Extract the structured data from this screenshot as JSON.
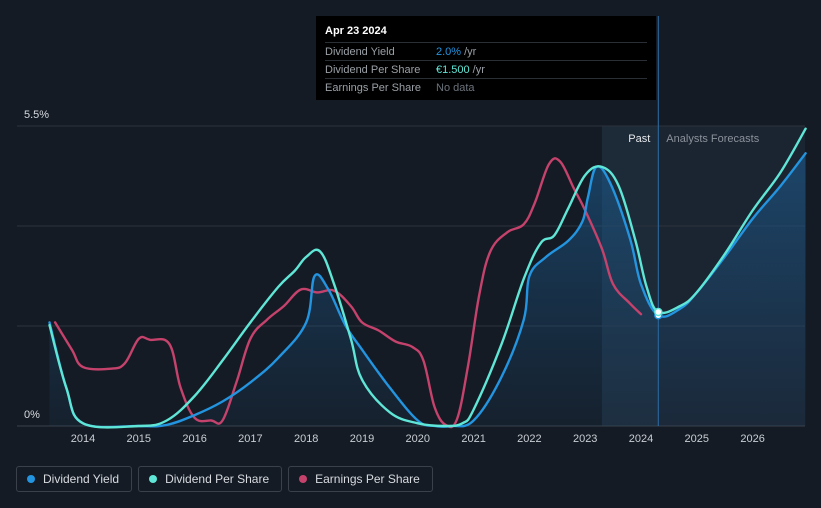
{
  "chart_data": {
    "type": "line",
    "title": "",
    "xlabel": "",
    "ylabel": "",
    "ylim": [
      0,
      5.5
    ],
    "y_ticks": [
      "0%",
      "5.5%"
    ],
    "x_ticks": [
      "2014",
      "2015",
      "2016",
      "2017",
      "2018",
      "2019",
      "2020",
      "2021",
      "2022",
      "2023",
      "2024",
      "2025",
      "2026"
    ],
    "past_label": "Past",
    "forecast_label": "Analysts Forecasts",
    "current_date": 2024.31,
    "series": [
      {
        "name": "Dividend Yield",
        "color": "#2394df",
        "area": true,
        "points": [
          [
            2013.4,
            1.9
          ],
          [
            2013.7,
            0.7
          ],
          [
            2014.0,
            0.05
          ],
          [
            2015.0,
            0.0
          ],
          [
            2015.5,
            0.02
          ],
          [
            2016.0,
            0.2
          ],
          [
            2016.5,
            0.45
          ],
          [
            2017.0,
            0.8
          ],
          [
            2017.5,
            1.25
          ],
          [
            2018.0,
            1.9
          ],
          [
            2018.15,
            2.75
          ],
          [
            2018.4,
            2.5
          ],
          [
            2018.7,
            1.85
          ],
          [
            2019.0,
            1.4
          ],
          [
            2019.5,
            0.7
          ],
          [
            2020.0,
            0.1
          ],
          [
            2020.3,
            0.0
          ],
          [
            2020.6,
            0.0
          ],
          [
            2021.0,
            0.1
          ],
          [
            2021.5,
            0.9
          ],
          [
            2021.9,
            1.95
          ],
          [
            2022.0,
            2.75
          ],
          [
            2022.3,
            3.1
          ],
          [
            2022.7,
            3.4
          ],
          [
            2022.95,
            3.75
          ],
          [
            2023.05,
            4.2
          ],
          [
            2023.2,
            4.75
          ],
          [
            2023.45,
            4.45
          ],
          [
            2023.8,
            3.45
          ],
          [
            2024.0,
            2.6
          ],
          [
            2024.31,
            2.03
          ],
          [
            2024.7,
            2.15
          ],
          [
            2025.0,
            2.45
          ],
          [
            2025.5,
            3.1
          ],
          [
            2026.0,
            3.8
          ],
          [
            2026.5,
            4.4
          ],
          [
            2026.95,
            5.0
          ]
        ]
      },
      {
        "name": "Dividend Per Share",
        "color": "#5fe6d6",
        "area": false,
        "points": [
          [
            2013.4,
            1.85
          ],
          [
            2013.7,
            0.7
          ],
          [
            2014.0,
            0.05
          ],
          [
            2015.0,
            0.0
          ],
          [
            2015.5,
            0.1
          ],
          [
            2016.0,
            0.55
          ],
          [
            2016.5,
            1.2
          ],
          [
            2017.0,
            1.9
          ],
          [
            2017.5,
            2.55
          ],
          [
            2017.8,
            2.85
          ],
          [
            2018.0,
            3.1
          ],
          [
            2018.25,
            3.2
          ],
          [
            2018.5,
            2.6
          ],
          [
            2018.8,
            1.6
          ],
          [
            2019.0,
            0.85
          ],
          [
            2019.5,
            0.25
          ],
          [
            2020.0,
            0.05
          ],
          [
            2020.5,
            0.0
          ],
          [
            2020.8,
            0.05
          ],
          [
            2021.0,
            0.3
          ],
          [
            2021.5,
            1.5
          ],
          [
            2021.9,
            2.7
          ],
          [
            2022.2,
            3.35
          ],
          [
            2022.45,
            3.5
          ],
          [
            2022.7,
            4.0
          ],
          [
            2023.0,
            4.6
          ],
          [
            2023.3,
            4.75
          ],
          [
            2023.6,
            4.4
          ],
          [
            2023.9,
            3.4
          ],
          [
            2024.1,
            2.55
          ],
          [
            2024.31,
            2.09
          ],
          [
            2024.7,
            2.2
          ],
          [
            2025.0,
            2.45
          ],
          [
            2025.5,
            3.15
          ],
          [
            2026.0,
            3.95
          ],
          [
            2026.5,
            4.65
          ],
          [
            2026.95,
            5.45
          ]
        ]
      },
      {
        "name": "Earnings Per Share",
        "color": "#c4426c",
        "area": false,
        "points": [
          [
            2013.5,
            1.9
          ],
          [
            2013.8,
            1.4
          ],
          [
            2014.0,
            1.08
          ],
          [
            2014.5,
            1.05
          ],
          [
            2014.75,
            1.15
          ],
          [
            2015.0,
            1.6
          ],
          [
            2015.2,
            1.58
          ],
          [
            2015.55,
            1.5
          ],
          [
            2015.75,
            0.7
          ],
          [
            2016.0,
            0.15
          ],
          [
            2016.3,
            0.1
          ],
          [
            2016.5,
            0.1
          ],
          [
            2016.75,
            0.8
          ],
          [
            2017.0,
            1.6
          ],
          [
            2017.3,
            1.95
          ],
          [
            2017.6,
            2.2
          ],
          [
            2017.9,
            2.5
          ],
          [
            2018.2,
            2.45
          ],
          [
            2018.5,
            2.48
          ],
          [
            2018.8,
            2.2
          ],
          [
            2019.0,
            1.9
          ],
          [
            2019.3,
            1.75
          ],
          [
            2019.6,
            1.55
          ],
          [
            2019.9,
            1.45
          ],
          [
            2020.1,
            1.2
          ],
          [
            2020.3,
            0.35
          ],
          [
            2020.5,
            0.02
          ],
          [
            2020.7,
            0.12
          ],
          [
            2020.9,
            1.1
          ],
          [
            2021.1,
            2.4
          ],
          [
            2021.3,
            3.2
          ],
          [
            2021.6,
            3.55
          ],
          [
            2021.9,
            3.7
          ],
          [
            2022.1,
            4.1
          ],
          [
            2022.35,
            4.8
          ],
          [
            2022.55,
            4.85
          ],
          [
            2022.8,
            4.35
          ],
          [
            2023.0,
            3.95
          ],
          [
            2023.3,
            3.25
          ],
          [
            2023.5,
            2.6
          ],
          [
            2023.8,
            2.25
          ],
          [
            2024.0,
            2.05
          ]
        ]
      }
    ]
  },
  "tooltip": {
    "date": "Apr 23 2024",
    "rows": [
      {
        "label": "Dividend Yield",
        "value": "2.0%",
        "unit": " /yr",
        "color": "#2394df"
      },
      {
        "label": "Dividend Per Share",
        "value": "€1.500",
        "unit": " /yr",
        "color": "#5fe6d6"
      },
      {
        "label": "Earnings Per Share",
        "value": "No data",
        "unit": "",
        "color": "#6c737c"
      }
    ]
  },
  "legend": [
    {
      "label": "Dividend Yield",
      "color": "#2394df"
    },
    {
      "label": "Dividend Per Share",
      "color": "#5fe6d6"
    },
    {
      "label": "Earnings Per Share",
      "color": "#c4426c"
    }
  ]
}
